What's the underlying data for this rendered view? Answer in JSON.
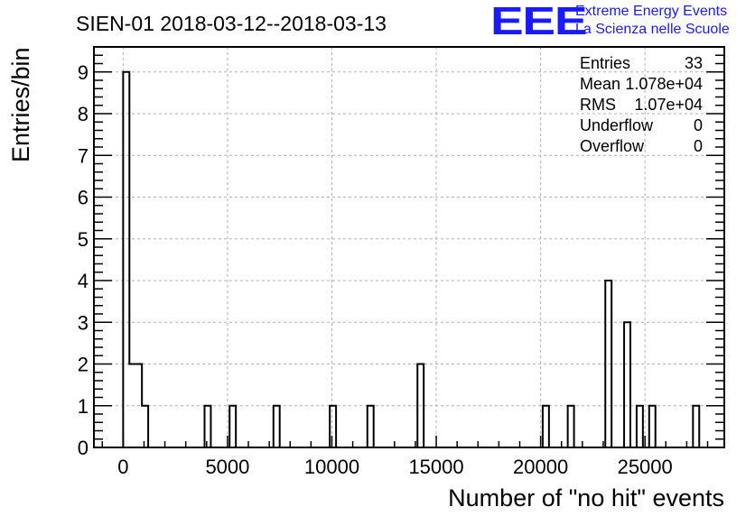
{
  "logo": {
    "text": "EEE",
    "line1": "Extreme Energy Events",
    "line2": "La Scienza nelle Scuole",
    "color": "#1a1aff"
  },
  "chart_data": {
    "type": "bar",
    "title": "SIEN-01 2018-03-12--2018-03-13",
    "xlabel": "Number of \"no hit\" events",
    "ylabel": "Entries/bin",
    "xlim": [
      -1400,
      28800
    ],
    "ylim": [
      0,
      9.6
    ],
    "xticks": [
      0,
      5000,
      10000,
      15000,
      20000,
      25000
    ],
    "xtick_labels": [
      "0",
      "5000",
      "10000",
      "15000",
      "20000",
      "25000"
    ],
    "yticks": [
      0,
      1,
      2,
      3,
      4,
      5,
      6,
      7,
      8,
      9
    ],
    "ytick_labels": [
      "0",
      "1",
      "2",
      "3",
      "4",
      "5",
      "6",
      "7",
      "8",
      "9"
    ],
    "grid": true,
    "bin_width": 300,
    "bins": [
      {
        "x": 0,
        "value": 9
      },
      {
        "x": 300,
        "value": 2
      },
      {
        "x": 600,
        "value": 2
      },
      {
        "x": 900,
        "value": 1
      },
      {
        "x": 3900,
        "value": 1
      },
      {
        "x": 5100,
        "value": 1
      },
      {
        "x": 7200,
        "value": 1
      },
      {
        "x": 9900,
        "value": 1
      },
      {
        "x": 11700,
        "value": 1
      },
      {
        "x": 14100,
        "value": 2
      },
      {
        "x": 20100,
        "value": 1
      },
      {
        "x": 21300,
        "value": 1
      },
      {
        "x": 23100,
        "value": 4
      },
      {
        "x": 24000,
        "value": 3
      },
      {
        "x": 24600,
        "value": 1
      },
      {
        "x": 25200,
        "value": 1
      },
      {
        "x": 27300,
        "value": 1
      }
    ],
    "stats": [
      {
        "label": "Entries",
        "value": "33"
      },
      {
        "label": "Mean",
        "value": "1.078e+04"
      },
      {
        "label": "RMS",
        "value": "1.07e+04"
      },
      {
        "label": "Underflow",
        "value": "0"
      },
      {
        "label": "Overflow",
        "value": "0"
      }
    ],
    "legend_position": "top-right"
  }
}
